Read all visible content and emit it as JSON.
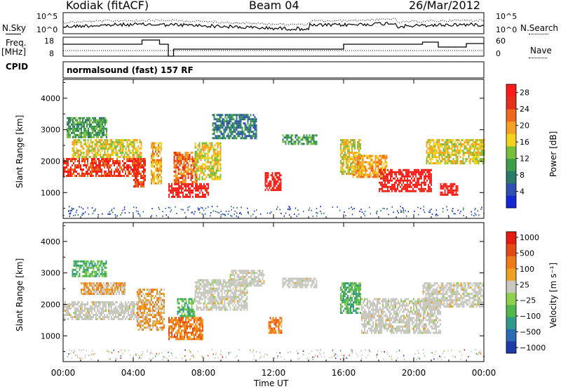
{
  "header": {
    "station": "Kodiak (fitACF)",
    "beam": "Beam 04",
    "date": "26/Mar/2012"
  },
  "side_labels": {
    "nsky": "N.Sky",
    "nsearch": "N.Search",
    "freq": "Freq.",
    "freq_unit": "[MHz]",
    "nave": "Nave",
    "cpid": "CPID",
    "cpid_text": "normalsound (fast) 157 RF"
  },
  "small_axes": {
    "noise_ticks": [
      "10^5",
      "10^0"
    ],
    "freq_ticks": [
      "18",
      "8"
    ],
    "nave_ticks": [
      "60",
      "0"
    ]
  },
  "chart_data": [
    {
      "type": "heatmap",
      "title": "Power",
      "xlabel": "Time UT",
      "ylabel": "Slant Range [km]",
      "x_ticks": [
        "00:00",
        "04:00",
        "08:00",
        "12:00",
        "16:00",
        "20:00",
        "00:00"
      ],
      "x_range_hours": [
        0,
        24
      ],
      "y_ticks": [
        1000,
        2000,
        3000,
        4000
      ],
      "ylim": [
        180,
        4600
      ],
      "colorbar": {
        "label": "Power [dB]",
        "ticks": [
          4,
          8,
          12,
          16,
          20,
          24,
          28
        ],
        "colors": [
          "#1526d6",
          "#2f4fb3",
          "#2a7a6a",
          "#3d9e49",
          "#78c03a",
          "#f2d31b",
          "#f5a224",
          "#ef6a1c",
          "#e4301a",
          "#ff1a1a"
        ]
      },
      "bands": [
        {
          "from": 0.0,
          "to": 4.3,
          "r1": 1550,
          "r2": 2100,
          "level": 8
        },
        {
          "from": 0.5,
          "to": 4.5,
          "r1": 2150,
          "r2": 2700,
          "level": 5
        },
        {
          "from": 0.2,
          "to": 2.5,
          "r1": 2750,
          "r2": 3400,
          "level": 3
        },
        {
          "from": 4.0,
          "to": 4.7,
          "r1": 1200,
          "r2": 2100,
          "level": 8
        },
        {
          "from": 5.0,
          "to": 5.6,
          "r1": 1300,
          "r2": 2600,
          "level": 6
        },
        {
          "from": 6.0,
          "to": 8.3,
          "r1": 850,
          "r2": 1300,
          "level": 9
        },
        {
          "from": 6.3,
          "to": 7.6,
          "r1": 1300,
          "r2": 2300,
          "level": 7
        },
        {
          "from": 7.5,
          "to": 9.0,
          "r1": 1400,
          "r2": 2600,
          "level": 5
        },
        {
          "from": 8.5,
          "to": 11.0,
          "r1": 2700,
          "r2": 3500,
          "level": 2
        },
        {
          "from": 11.5,
          "to": 12.4,
          "r1": 1050,
          "r2": 1650,
          "level": 9
        },
        {
          "from": 12.5,
          "to": 14.5,
          "r1": 2550,
          "r2": 2850,
          "level": 3
        },
        {
          "from": 15.8,
          "to": 17.0,
          "r1": 1600,
          "r2": 2700,
          "level": 5
        },
        {
          "from": 16.5,
          "to": 18.5,
          "r1": 1500,
          "r2": 2200,
          "level": 6
        },
        {
          "from": 18.0,
          "to": 21.0,
          "r1": 1050,
          "r2": 1750,
          "level": 9
        },
        {
          "from": 20.7,
          "to": 24.0,
          "r1": 1900,
          "r2": 2700,
          "level": 5
        },
        {
          "from": 21.5,
          "to": 22.5,
          "r1": 900,
          "r2": 1300,
          "level": 9
        }
      ]
    },
    {
      "type": "heatmap",
      "title": "Velocity",
      "xlabel": "Time UT",
      "ylabel": "Slant Range [km]",
      "x_ticks": [
        "00:00",
        "04:00",
        "08:00",
        "12:00",
        "16:00",
        "20:00",
        "00:00"
      ],
      "x_range_hours": [
        0,
        24
      ],
      "y_ticks": [
        1000,
        2000,
        3000,
        4000
      ],
      "ylim": [
        180,
        4600
      ],
      "colorbar": {
        "label": "Velocity [m s⁻¹]",
        "ticks": [
          "1000",
          "500",
          "100",
          "25",
          "−25",
          "−100",
          "−500",
          "−1000"
        ],
        "colors": [
          "#1e3aa8",
          "#2a6bb5",
          "#2f9a8a",
          "#4fb84a",
          "#8ed04b",
          "#c8c8c0",
          "#f0a020",
          "#ef7a18",
          "#e44a14",
          "#e61b10"
        ]
      },
      "bands": [
        {
          "from": 0.0,
          "to": 4.3,
          "r1": 1550,
          "r2": 2100,
          "level": 5
        },
        {
          "from": 1.0,
          "to": 3.5,
          "r1": 2300,
          "r2": 2700,
          "level": 6
        },
        {
          "from": 0.5,
          "to": 2.5,
          "r1": 2900,
          "r2": 3400,
          "level": 3
        },
        {
          "from": 4.2,
          "to": 5.8,
          "r1": 1200,
          "r2": 2500,
          "level": 6
        },
        {
          "from": 6.0,
          "to": 8.0,
          "r1": 900,
          "r2": 1600,
          "level": 7
        },
        {
          "from": 6.5,
          "to": 7.5,
          "r1": 1600,
          "r2": 2200,
          "level": 3
        },
        {
          "from": 7.5,
          "to": 10.5,
          "r1": 1800,
          "r2": 2800,
          "level": 5
        },
        {
          "from": 9.5,
          "to": 11.5,
          "r1": 2600,
          "r2": 3100,
          "level": 5
        },
        {
          "from": 11.7,
          "to": 12.5,
          "r1": 1100,
          "r2": 1600,
          "level": 7
        },
        {
          "from": 12.5,
          "to": 14.5,
          "r1": 2550,
          "r2": 2850,
          "level": 5
        },
        {
          "from": 15.8,
          "to": 17.0,
          "r1": 1700,
          "r2": 2700,
          "level": 3
        },
        {
          "from": 17.0,
          "to": 21.5,
          "r1": 1100,
          "r2": 2200,
          "level": 5
        },
        {
          "from": 20.5,
          "to": 24.0,
          "r1": 1900,
          "r2": 2700,
          "level": 5
        }
      ]
    }
  ],
  "xlabel": "Time UT"
}
